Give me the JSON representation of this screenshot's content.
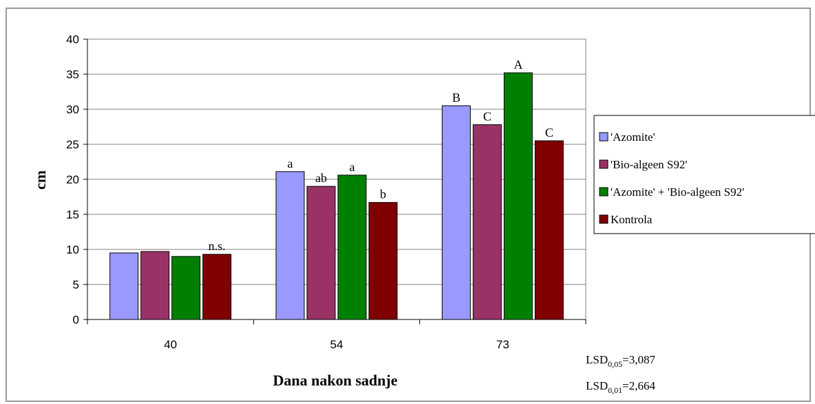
{
  "chart_data": {
    "type": "bar",
    "categories": [
      "40",
      "54",
      "73"
    ],
    "series": [
      {
        "name": "'Azomite'",
        "color": "#9999ff",
        "values": [
          9.5,
          21.1,
          30.5
        ],
        "labels": [
          "",
          "a",
          "B"
        ]
      },
      {
        "name": "'Bio-algeen S92'",
        "color": "#993366",
        "values": [
          9.7,
          19.0,
          27.8
        ],
        "labels": [
          "",
          "ab",
          "C"
        ]
      },
      {
        "name": "'Azomite' + 'Bio-algeen S92'",
        "color": "#008000",
        "values": [
          9.0,
          20.6,
          35.2
        ],
        "labels": [
          "",
          "a",
          "A"
        ]
      },
      {
        "name": "Kontrola",
        "color": "#800000",
        "values": [
          9.3,
          16.7,
          25.5
        ],
        "labels": [
          "n.s.",
          "b",
          "C"
        ]
      }
    ],
    "xlabel": "Dana nakon sadnje",
    "ylabel": "cm",
    "ylim": [
      0,
      40
    ],
    "yticks": [
      "0",
      "5",
      "10",
      "15",
      "20",
      "25",
      "30",
      "35",
      "40"
    ],
    "grid": true,
    "legend_position": "right",
    "lsd": [
      {
        "prefix": "LSD",
        "sub": "0,05",
        "value": "=3,087"
      },
      {
        "prefix": "LSD",
        "sub": "0,01",
        "value": "=2,664"
      }
    ]
  }
}
